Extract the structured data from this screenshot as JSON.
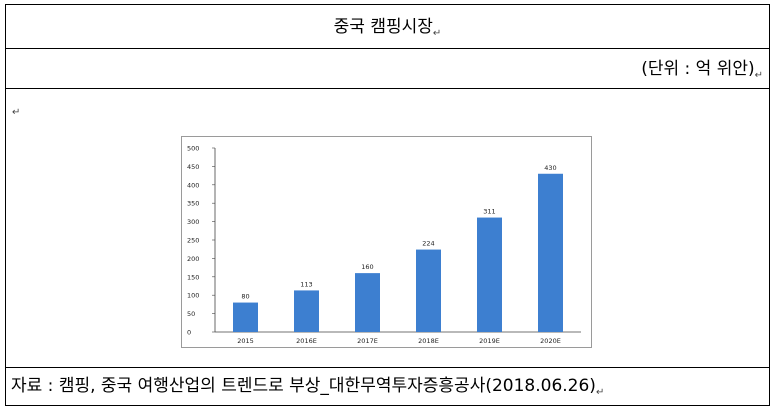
{
  "header": {
    "title": "중국 캠핑시장"
  },
  "unit_row": {
    "text": "(단위 : 억 위안)"
  },
  "paragraph_mark": "↵",
  "source": {
    "text": "자료 : 캠핑, 중국 여행산업의 트렌드로 부상_대한무역투자증흥공사(2018.06.26)"
  },
  "colors": {
    "bar": "#3d7fd0",
    "axis": "#444444",
    "frame": "#9a9a9a"
  },
  "chart_data": {
    "type": "bar",
    "title": "",
    "xlabel": "",
    "ylabel": "",
    "categories": [
      "2015",
      "2016E",
      "2017E",
      "2018E",
      "2019E",
      "2020E"
    ],
    "values": [
      80,
      113,
      160,
      224,
      311,
      430
    ],
    "data_labels": [
      "80",
      "113",
      "160",
      "224",
      "311",
      "430"
    ],
    "ylim": [
      0,
      500
    ],
    "yticks": [
      0,
      50,
      100,
      150,
      200,
      250,
      300,
      350,
      400,
      450,
      500
    ],
    "grid": false,
    "legend": "none"
  }
}
